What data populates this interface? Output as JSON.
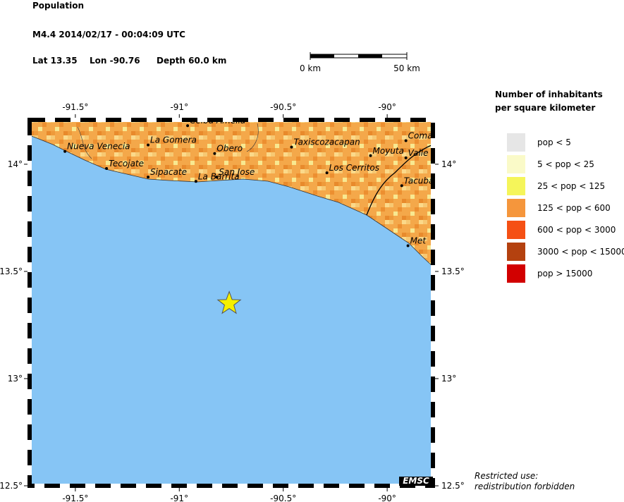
{
  "header": {
    "title": "Population",
    "event": "M4.4  2014/02/17 - 00:04:09 UTC",
    "lat": {
      "value": 13.35,
      "label": "Lat 13.35"
    },
    "lon": {
      "value": -90.76,
      "label": "Lon -90.76"
    },
    "depth": "Depth  60.0 km"
  },
  "scale_bar": {
    "start": "0 km",
    "end": "50 km"
  },
  "map": {
    "lon_range": [
      -91.72,
      -89.78
    ],
    "lat_range": [
      12.5,
      14.207
    ],
    "lon_ticks": [
      {
        "value": -91.5,
        "label": "-91.5°"
      },
      {
        "value": -91,
        "label": "-91°"
      },
      {
        "value": -90.5,
        "label": "-90.5°"
      },
      {
        "value": -90,
        "label": "-90°"
      }
    ],
    "lat_ticks": [
      {
        "value": 14,
        "label": "14°"
      },
      {
        "value": 13.5,
        "label": "13.5°"
      },
      {
        "value": 13,
        "label": "13°"
      },
      {
        "value": 12.5,
        "label": "12.5°"
      }
    ],
    "cities": [
      {
        "name": "Nueva Venecia",
        "lon": -91.55,
        "lat": 14.06
      },
      {
        "name": "Tecojate",
        "lon": -91.35,
        "lat": 13.98
      },
      {
        "name": "Sipacate",
        "lon": -91.15,
        "lat": 13.94
      },
      {
        "name": "La Barrita",
        "lon": -90.92,
        "lat": 13.92
      },
      {
        "name": "San Jose",
        "lon": -90.82,
        "lat": 13.94
      },
      {
        "name": "La Gomera",
        "lon": -91.15,
        "lat": 14.09
      },
      {
        "name": "Obero",
        "lon": -90.83,
        "lat": 14.05
      },
      {
        "name": "Celba Amelia",
        "lon": -90.96,
        "lat": 14.18
      },
      {
        "name": "Taxiscozacapan",
        "lon": -90.46,
        "lat": 14.08
      },
      {
        "name": "Los Cerritos",
        "lon": -90.29,
        "lat": 13.96
      },
      {
        "name": "Moyuta",
        "lon": -90.08,
        "lat": 14.04
      },
      {
        "name": "Valle N",
        "lon": -89.91,
        "lat": 14.03
      },
      {
        "name": "Coma",
        "lon": -89.91,
        "lat": 14.11
      },
      {
        "name": "Tacuba",
        "lon": -89.93,
        "lat": 13.9
      },
      {
        "name": "Met",
        "lon": -89.9,
        "lat": 13.62
      }
    ],
    "credit": "EMSC"
  },
  "legend": {
    "title": [
      "Number of inhabitants",
      "per square kilometer"
    ],
    "items": [
      {
        "label": "pop < 5",
        "color": "#e6e6e6"
      },
      {
        "label": "5 < pop < 25",
        "color": "#fafac8"
      },
      {
        "label": "25 < pop < 125",
        "color": "#f5f55a"
      },
      {
        "label": "125 < pop < 600",
        "color": "#f5963c"
      },
      {
        "label": "600 < pop < 3000",
        "color": "#f55014"
      },
      {
        "label": "3000 < pop < 15000",
        "color": "#b4410f"
      },
      {
        "label": "pop > 15000",
        "color": "#d20000"
      }
    ]
  },
  "notice": [
    "Restricted use:",
    "redistribution forbidden"
  ]
}
